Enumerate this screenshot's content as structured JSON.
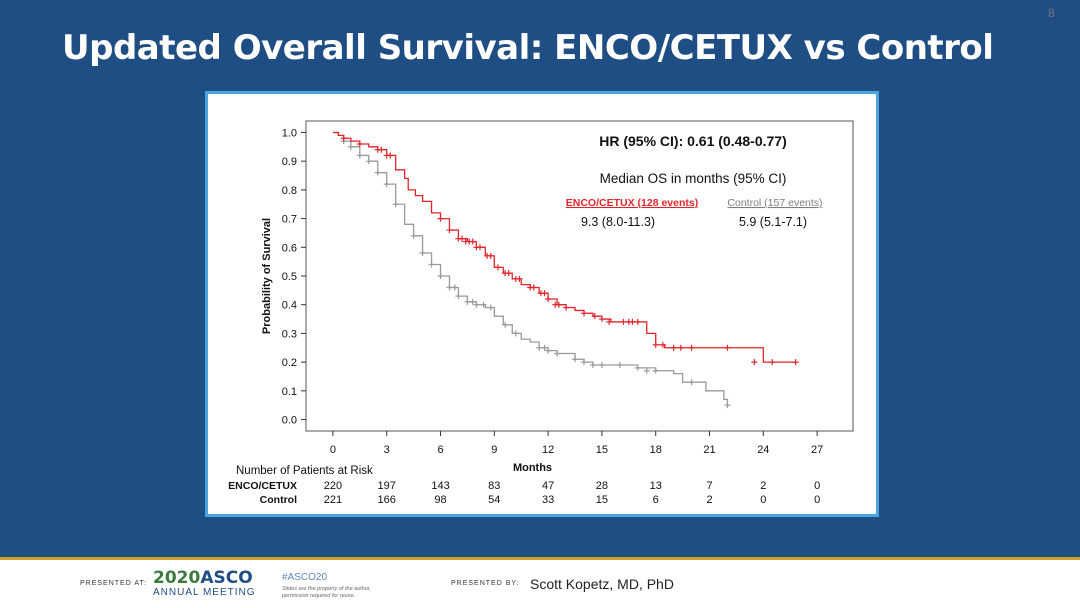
{
  "slide": {
    "title": "Updated Overall Survival: ENCO/CETUX vs Control",
    "page_number": "8"
  },
  "footer": {
    "presented_at": "PRESENTED AT:",
    "asco_year": "2020",
    "asco_name": "ASCO",
    "asco_sub": "ANNUAL MEETING",
    "hashtag": "#ASCO20",
    "note_line1": "Slides are the property of the author,",
    "note_line2": "permission required for reuse.",
    "presented_by": "PRESENTED BY:",
    "presenter": "Scott Kopetz, MD, PhD"
  },
  "colors": {
    "slide_bg": "#1f4e84",
    "frame": "#4aa3df",
    "enco": "#e0262b",
    "control": "#9a9a9a"
  },
  "chart_data": {
    "type": "line",
    "subtype": "kaplan-meier",
    "xlabel": "Months",
    "ylabel": "Probability of Survival",
    "xlim": [
      -1.5,
      29
    ],
    "ylim": [
      -0.04,
      1.04
    ],
    "xticks": [
      0,
      3,
      6,
      9,
      12,
      15,
      18,
      21,
      24,
      27
    ],
    "yticks": [
      0.0,
      0.1,
      0.2,
      0.3,
      0.4,
      0.5,
      0.6,
      0.7,
      0.8,
      0.9,
      1.0
    ],
    "ytick_labels": [
      "0.0",
      "0.1",
      "0.2",
      "0.3",
      "0.4",
      "0.5",
      "0.6",
      "0.7",
      "0.8",
      "0.9",
      "1.0"
    ],
    "annotations": {
      "hr": "HR (95% CI): 0.61 (0.48-0.77)",
      "median_header": "Median OS in months (95% CI)",
      "enco_label": "ENCO/CETUX (128 events)",
      "control_label": "Control (157 events)",
      "enco_median": "9.3 (8.0-11.3)",
      "control_median": "5.9 (5.1-7.1)"
    },
    "series": [
      {
        "name": "ENCO/CETUX",
        "color": "#e0262b",
        "x": [
          0,
          0.3,
          0.6,
          1.0,
          1.5,
          2.0,
          2.5,
          3.0,
          3.5,
          4.0,
          4.2,
          4.6,
          5.0,
          5.5,
          6.0,
          6.5,
          7.0,
          7.5,
          8.0,
          8.5,
          9.0,
          9.5,
          10.0,
          10.5,
          11.0,
          11.5,
          12.0,
          12.5,
          13.0,
          13.5,
          14.0,
          14.5,
          15.0,
          15.5,
          16.0,
          17.0,
          17.5,
          18.0,
          18.5,
          19.0,
          20.0,
          21.0,
          21.5,
          22.0,
          23.0,
          24.0,
          25.0,
          25.8
        ],
        "y": [
          1.0,
          0.99,
          0.98,
          0.97,
          0.96,
          0.95,
          0.94,
          0.92,
          0.87,
          0.84,
          0.8,
          0.78,
          0.76,
          0.72,
          0.7,
          0.66,
          0.63,
          0.62,
          0.6,
          0.57,
          0.53,
          0.51,
          0.49,
          0.47,
          0.46,
          0.44,
          0.42,
          0.4,
          0.39,
          0.38,
          0.37,
          0.36,
          0.35,
          0.34,
          0.34,
          0.34,
          0.3,
          0.26,
          0.25,
          0.25,
          0.25,
          0.25,
          0.25,
          0.25,
          0.25,
          0.2,
          0.2,
          0.2
        ],
        "censor_x": [
          0.6,
          1.5,
          2.5,
          2.7,
          3.0,
          3.2,
          6.0,
          6.5,
          7.0,
          7.2,
          7.4,
          7.6,
          7.8,
          8.0,
          8.2,
          8.6,
          8.8,
          9.2,
          9.6,
          9.8,
          10.2,
          10.4,
          11.0,
          11.2,
          11.6,
          11.8,
          12.0,
          12.4,
          12.6,
          13.0,
          14.0,
          14.6,
          15.0,
          15.4,
          16.2,
          16.5,
          16.7,
          17.0,
          18.0,
          18.4,
          19.0,
          19.4,
          20.0,
          22.0,
          23.5,
          24.5,
          25.8
        ],
        "censor_y": [
          0.98,
          0.96,
          0.94,
          0.94,
          0.92,
          0.92,
          0.7,
          0.66,
          0.63,
          0.63,
          0.62,
          0.62,
          0.62,
          0.6,
          0.6,
          0.57,
          0.57,
          0.53,
          0.51,
          0.51,
          0.49,
          0.49,
          0.46,
          0.46,
          0.44,
          0.44,
          0.42,
          0.4,
          0.4,
          0.39,
          0.37,
          0.36,
          0.35,
          0.34,
          0.34,
          0.34,
          0.34,
          0.34,
          0.26,
          0.26,
          0.25,
          0.25,
          0.25,
          0.25,
          0.2,
          0.2,
          0.2
        ]
      },
      {
        "name": "Control",
        "color": "#9a9a9a",
        "x": [
          0,
          0.3,
          0.6,
          1.0,
          1.5,
          2.0,
          2.5,
          3.0,
          3.5,
          4.0,
          4.5,
          5.0,
          5.5,
          6.0,
          6.5,
          7.0,
          7.5,
          8.0,
          8.5,
          9.0,
          9.5,
          10.0,
          10.5,
          11.0,
          11.5,
          12.0,
          12.5,
          13.0,
          13.5,
          14.0,
          14.5,
          15.0,
          16.0,
          17.0,
          18.0,
          19.0,
          19.5,
          20.0,
          20.8,
          21.5,
          21.8,
          22.0
        ],
        "y": [
          1.0,
          0.99,
          0.97,
          0.95,
          0.92,
          0.9,
          0.86,
          0.82,
          0.75,
          0.68,
          0.64,
          0.58,
          0.54,
          0.5,
          0.46,
          0.43,
          0.41,
          0.4,
          0.39,
          0.36,
          0.33,
          0.3,
          0.28,
          0.27,
          0.25,
          0.24,
          0.23,
          0.23,
          0.21,
          0.2,
          0.19,
          0.19,
          0.19,
          0.18,
          0.17,
          0.16,
          0.13,
          0.13,
          0.1,
          0.1,
          0.07,
          0.05
        ],
        "censor_x": [
          0.6,
          1.0,
          1.5,
          2.0,
          2.5,
          3.0,
          3.5,
          4.5,
          5.0,
          5.5,
          6.0,
          6.5,
          6.8,
          7.0,
          7.5,
          7.8,
          8.0,
          8.4,
          8.8,
          9.6,
          10.2,
          11.5,
          11.8,
          12.0,
          12.5,
          13.5,
          14.0,
          14.5,
          15.0,
          16.0,
          17.0,
          17.5,
          18.0,
          20.0,
          22.0
        ],
        "censor_y": [
          0.97,
          0.95,
          0.92,
          0.9,
          0.86,
          0.82,
          0.75,
          0.64,
          0.58,
          0.54,
          0.5,
          0.46,
          0.46,
          0.43,
          0.41,
          0.41,
          0.4,
          0.4,
          0.39,
          0.33,
          0.3,
          0.25,
          0.25,
          0.24,
          0.23,
          0.21,
          0.2,
          0.19,
          0.19,
          0.19,
          0.18,
          0.17,
          0.17,
          0.13,
          0.05
        ]
      }
    ],
    "at_risk": {
      "header": "Number of Patients at Risk",
      "rows": [
        {
          "name": "ENCO/CETUX",
          "values": [
            "220",
            "197",
            "143",
            "83",
            "47",
            "28",
            "13",
            "7",
            "2",
            "0"
          ]
        },
        {
          "name": "Control",
          "values": [
            "221",
            "166",
            "98",
            "54",
            "33",
            "15",
            "6",
            "2",
            "0",
            "0"
          ]
        }
      ]
    }
  }
}
